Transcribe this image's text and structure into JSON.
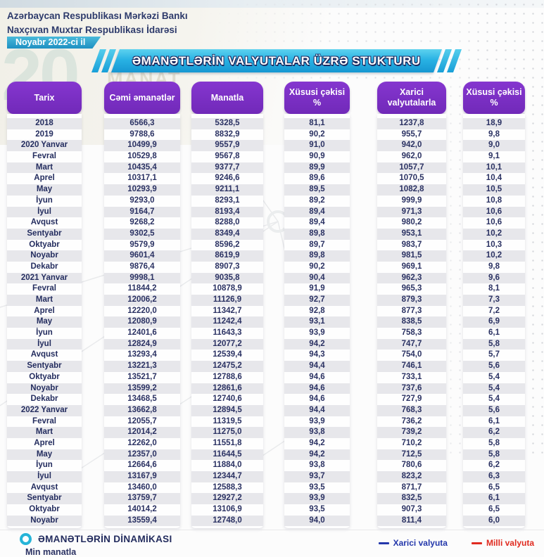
{
  "header": {
    "org_line1": "Azərbaycan Respublikası Mərkəzi Bankı",
    "org_line2": "Naxçıvan Muxtar Respublikası İdarəsi",
    "period_badge": "Noyabr 2022-ci il",
    "title": "ƏMANƏTLƏRİN VALYUTALAR ÜZRƏ STUKTURU"
  },
  "background": {
    "ghost_number": "20",
    "ghost_label": "MANAT"
  },
  "table": {
    "columns": [
      "Tarix",
      "Cəmi əmanətlər",
      "Manatla",
      "Xüsusi çəkisi %",
      "Xarici valyutalarla",
      "Xüsusi çəkisi %"
    ],
    "rows": [
      [
        "2018",
        "6566,3",
        "5328,5",
        "81,1",
        "1237,8",
        "18,9"
      ],
      [
        "2019",
        "9788,6",
        "8832,9",
        "90,2",
        "955,7",
        "9,8"
      ],
      [
        "2020 Yanvar",
        "10499,9",
        "9557,9",
        "91,0",
        "942,0",
        "9,0"
      ],
      [
        "Fevral",
        "10529,8",
        "9567,8",
        "90,9",
        "962,0",
        "9,1"
      ],
      [
        "Mart",
        "10435,4",
        "9377,7",
        "89,9",
        "1057,7",
        "10,1"
      ],
      [
        "Aprel",
        "10317,1",
        "9246,6",
        "89,6",
        "1070,5",
        "10,4"
      ],
      [
        "May",
        "10293,9",
        "9211,1",
        "89,5",
        "1082,8",
        "10,5"
      ],
      [
        "İyun",
        "9293,0",
        "8293,1",
        "89,2",
        "999,9",
        "10,8"
      ],
      [
        "İyul",
        "9164,7",
        "8193,4",
        "89,4",
        "971,3",
        "10,6"
      ],
      [
        "Avqust",
        "9268,2",
        "8288,0",
        "89,4",
        "980,2",
        "10,6"
      ],
      [
        "Sentyabr",
        "9302,5",
        "8349,4",
        "89,8",
        "953,1",
        "10,2"
      ],
      [
        "Oktyabr",
        "9579,9",
        "8596,2",
        "89,7",
        "983,7",
        "10,3"
      ],
      [
        "Noyabr",
        "9601,4",
        "8619,9",
        "89,8",
        "981,5",
        "10,2"
      ],
      [
        "Dekabr",
        "9876,4",
        "8907,3",
        "90,2",
        "969,1",
        "9,8"
      ],
      [
        "2021 Yanvar",
        "9998,1",
        "9035,8",
        "90,4",
        "962,3",
        "9,6"
      ],
      [
        "Fevral",
        "11844,2",
        "10878,9",
        "91,9",
        "965,3",
        "8,1"
      ],
      [
        "Mart",
        "12006,2",
        "11126,9",
        "92,7",
        "879,3",
        "7,3"
      ],
      [
        "Aprel",
        "12220,0",
        "11342,7",
        "92,8",
        "877,3",
        "7,2"
      ],
      [
        "May",
        "12080,9",
        "11242,4",
        "93,1",
        "838,5",
        "6,9"
      ],
      [
        "İyun",
        "12401,6",
        "11643,3",
        "93,9",
        "758,3",
        "6,1"
      ],
      [
        "İyul",
        "12824,9",
        "12077,2",
        "94,2",
        "747,7",
        "5,8"
      ],
      [
        "Avqust",
        "13293,4",
        "12539,4",
        "94,3",
        "754,0",
        "5,7"
      ],
      [
        "Sentyabr",
        "13221,3",
        "12475,2",
        "94,4",
        "746,1",
        "5,6"
      ],
      [
        "Oktyabr",
        "13521,7",
        "12788,6",
        "94,6",
        "733,1",
        "5,4"
      ],
      [
        "Noyabr",
        "13599,2",
        "12861,6",
        "94,6",
        "737,6",
        "5,4"
      ],
      [
        "Dekabr",
        "13468,5",
        "12740,6",
        "94,6",
        "727,9",
        "5,4"
      ],
      [
        "2022 Yanvar",
        "13662,8",
        "12894,5",
        "94,4",
        "768,3",
        "5,6"
      ],
      [
        "Fevral",
        "12055,7",
        "11319,5",
        "93,9",
        "736,2",
        "6,1"
      ],
      [
        "Mart",
        "12014,2",
        "11275,0",
        "93,8",
        "739,2",
        "6,2"
      ],
      [
        "Aprel",
        "12262,0",
        "11551,8",
        "94,2",
        "710,2",
        "5,8"
      ],
      [
        "May",
        "12357,0",
        "11644,5",
        "94,2",
        "712,5",
        "5,8"
      ],
      [
        "İyun",
        "12664,6",
        "11884,0",
        "93,8",
        "780,6",
        "6,2"
      ],
      [
        "İyul",
        "13167,9",
        "12344,7",
        "93,7",
        "823,2",
        "6,3"
      ],
      [
        "Avqust",
        "13460,0",
        "12588,3",
        "93,5",
        "871,7",
        "6,5"
      ],
      [
        "Sentyabr",
        "13759,7",
        "12927,2",
        "93,9",
        "832,5",
        "6,1"
      ],
      [
        "Oktyabr",
        "14014,2",
        "13106,9",
        "93,5",
        "907,3",
        "6,5"
      ],
      [
        "Noyabr",
        "13559,4",
        "12748,0",
        "94,0",
        "811,4",
        "6,0"
      ]
    ]
  },
  "footer": {
    "section_title": "ƏMANƏTLƏRİN  DİNAMİKASI",
    "subtitle": "Min manatla",
    "legend": [
      {
        "label": "Xarici valyuta",
        "color": "#2438ab"
      },
      {
        "label": "Milli valyuta",
        "color": "#e02b20"
      }
    ]
  },
  "colors": {
    "header_purple": "#7b2ec6",
    "banner_cyan": "#29b2e4",
    "badge_teal": "#2ea4cc",
    "navy_text": "#2b3263",
    "alt_row": "#e7e7eb"
  }
}
